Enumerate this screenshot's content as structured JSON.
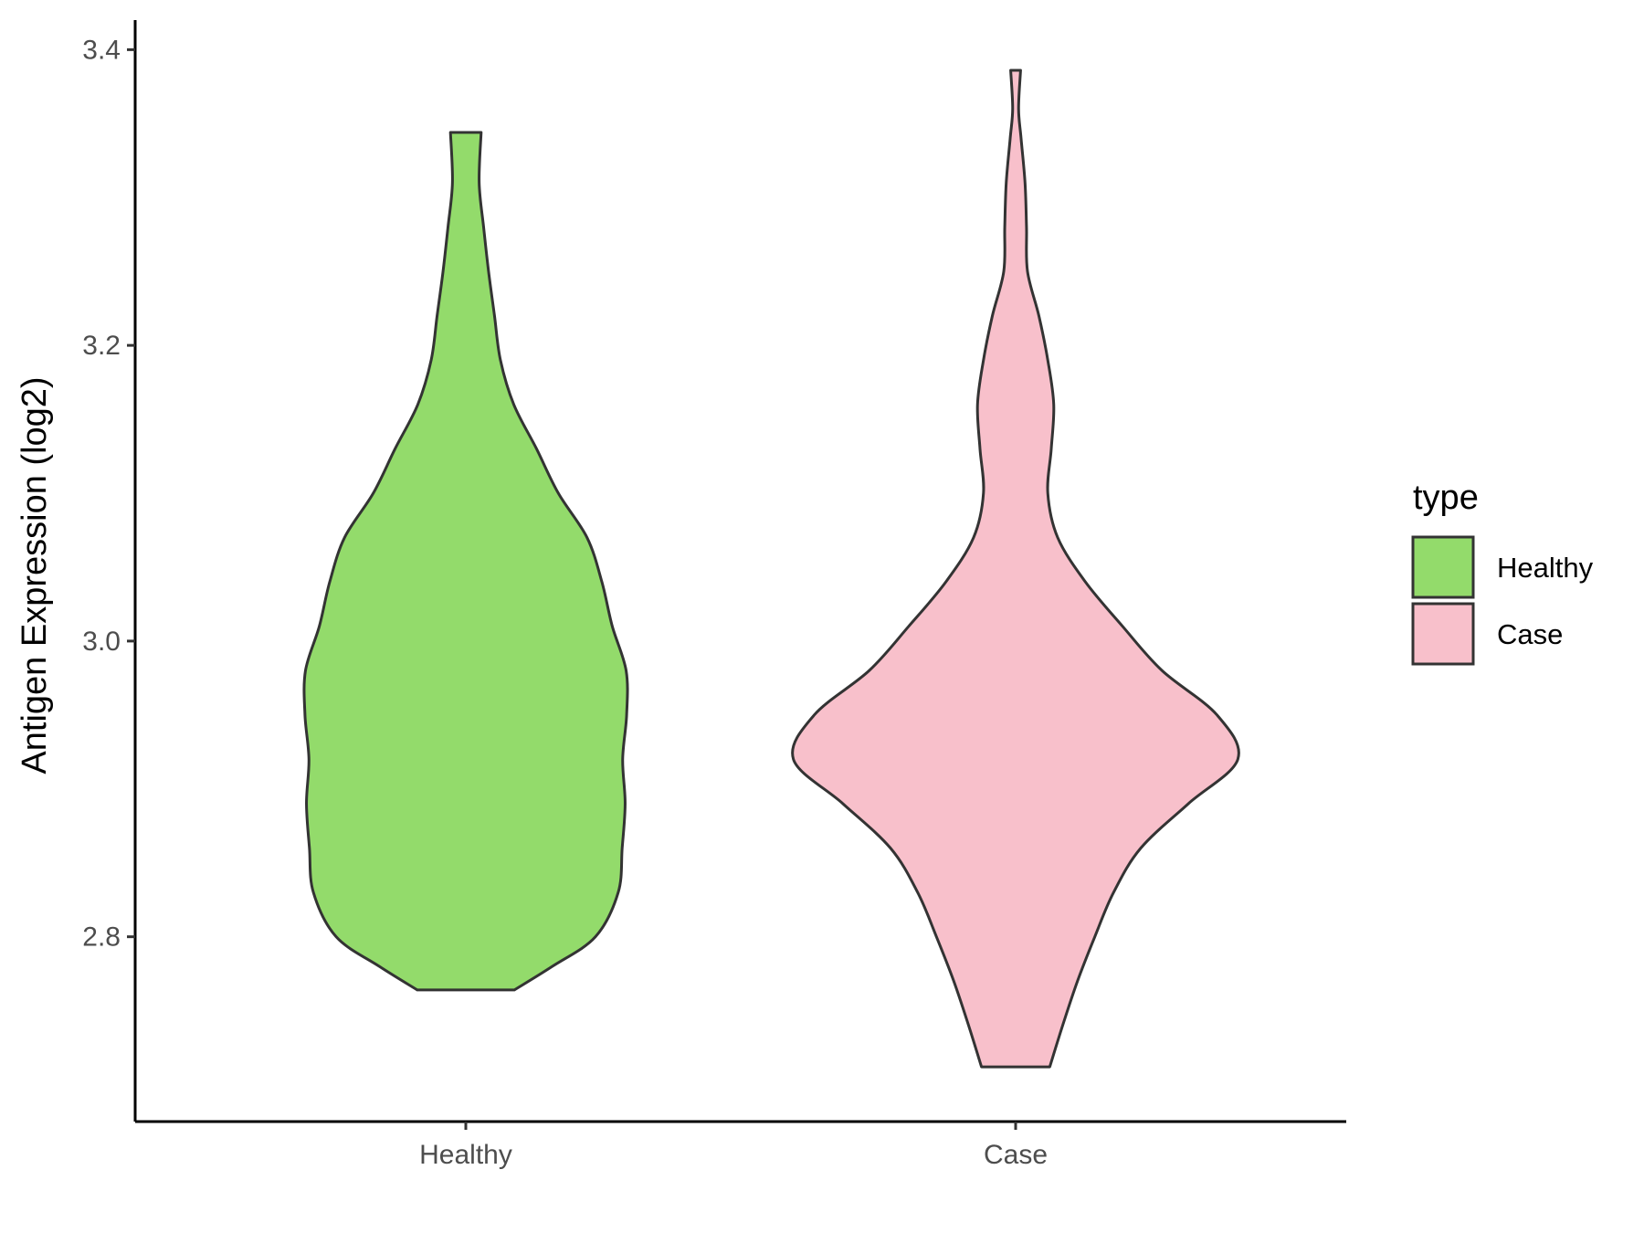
{
  "chart_data": {
    "type": "violin",
    "ylabel": "Antigen Expression (log2)",
    "xlabel": "",
    "ylim": [
      2.675,
      3.42
    ],
    "yticks": [
      2.8,
      3.0,
      3.2,
      3.4
    ],
    "ytick_labels": [
      "2.8",
      "3.0",
      "3.2",
      "3.4"
    ],
    "categories": [
      "Healthy",
      "Case"
    ],
    "legend": {
      "title": "type",
      "position": "right",
      "items": [
        {
          "label": "Healthy",
          "color": "#93DB6B"
        },
        {
          "label": "Case",
          "color": "#F8C0CB"
        }
      ]
    },
    "outline_color": "#333333",
    "series": [
      {
        "name": "Healthy",
        "color": "#93DB6B",
        "min": 2.764,
        "max": 3.344,
        "profile": [
          [
            2.764,
            0.098
          ],
          [
            2.78,
            0.175
          ],
          [
            2.8,
            0.262
          ],
          [
            2.83,
            0.308
          ],
          [
            2.86,
            0.316
          ],
          [
            2.89,
            0.322
          ],
          [
            2.92,
            0.317
          ],
          [
            2.95,
            0.325
          ],
          [
            2.98,
            0.324
          ],
          [
            3.01,
            0.296
          ],
          [
            3.04,
            0.275
          ],
          [
            3.07,
            0.245
          ],
          [
            3.1,
            0.187
          ],
          [
            3.13,
            0.143
          ],
          [
            3.16,
            0.097
          ],
          [
            3.19,
            0.07
          ],
          [
            3.22,
            0.058
          ],
          [
            3.25,
            0.046
          ],
          [
            3.28,
            0.036
          ],
          [
            3.31,
            0.027
          ],
          [
            3.344,
            0.031
          ]
        ]
      },
      {
        "name": "Case",
        "color": "#F8C0CB",
        "min": 2.712,
        "max": 3.386,
        "profile": [
          [
            2.712,
            0.069
          ],
          [
            2.74,
            0.095
          ],
          [
            2.77,
            0.125
          ],
          [
            2.8,
            0.16
          ],
          [
            2.83,
            0.198
          ],
          [
            2.86,
            0.253
          ],
          [
            2.89,
            0.349
          ],
          [
            2.92,
            0.449
          ],
          [
            2.95,
            0.407
          ],
          [
            2.98,
            0.296
          ],
          [
            3.01,
            0.216
          ],
          [
            3.04,
            0.141
          ],
          [
            3.07,
            0.085
          ],
          [
            3.1,
            0.065
          ],
          [
            3.13,
            0.072
          ],
          [
            3.16,
            0.077
          ],
          [
            3.19,
            0.065
          ],
          [
            3.22,
            0.047
          ],
          [
            3.25,
            0.024
          ],
          [
            3.28,
            0.022
          ],
          [
            3.31,
            0.019
          ],
          [
            3.34,
            0.011
          ],
          [
            3.36,
            0.006
          ],
          [
            3.386,
            0.01
          ]
        ]
      }
    ]
  }
}
